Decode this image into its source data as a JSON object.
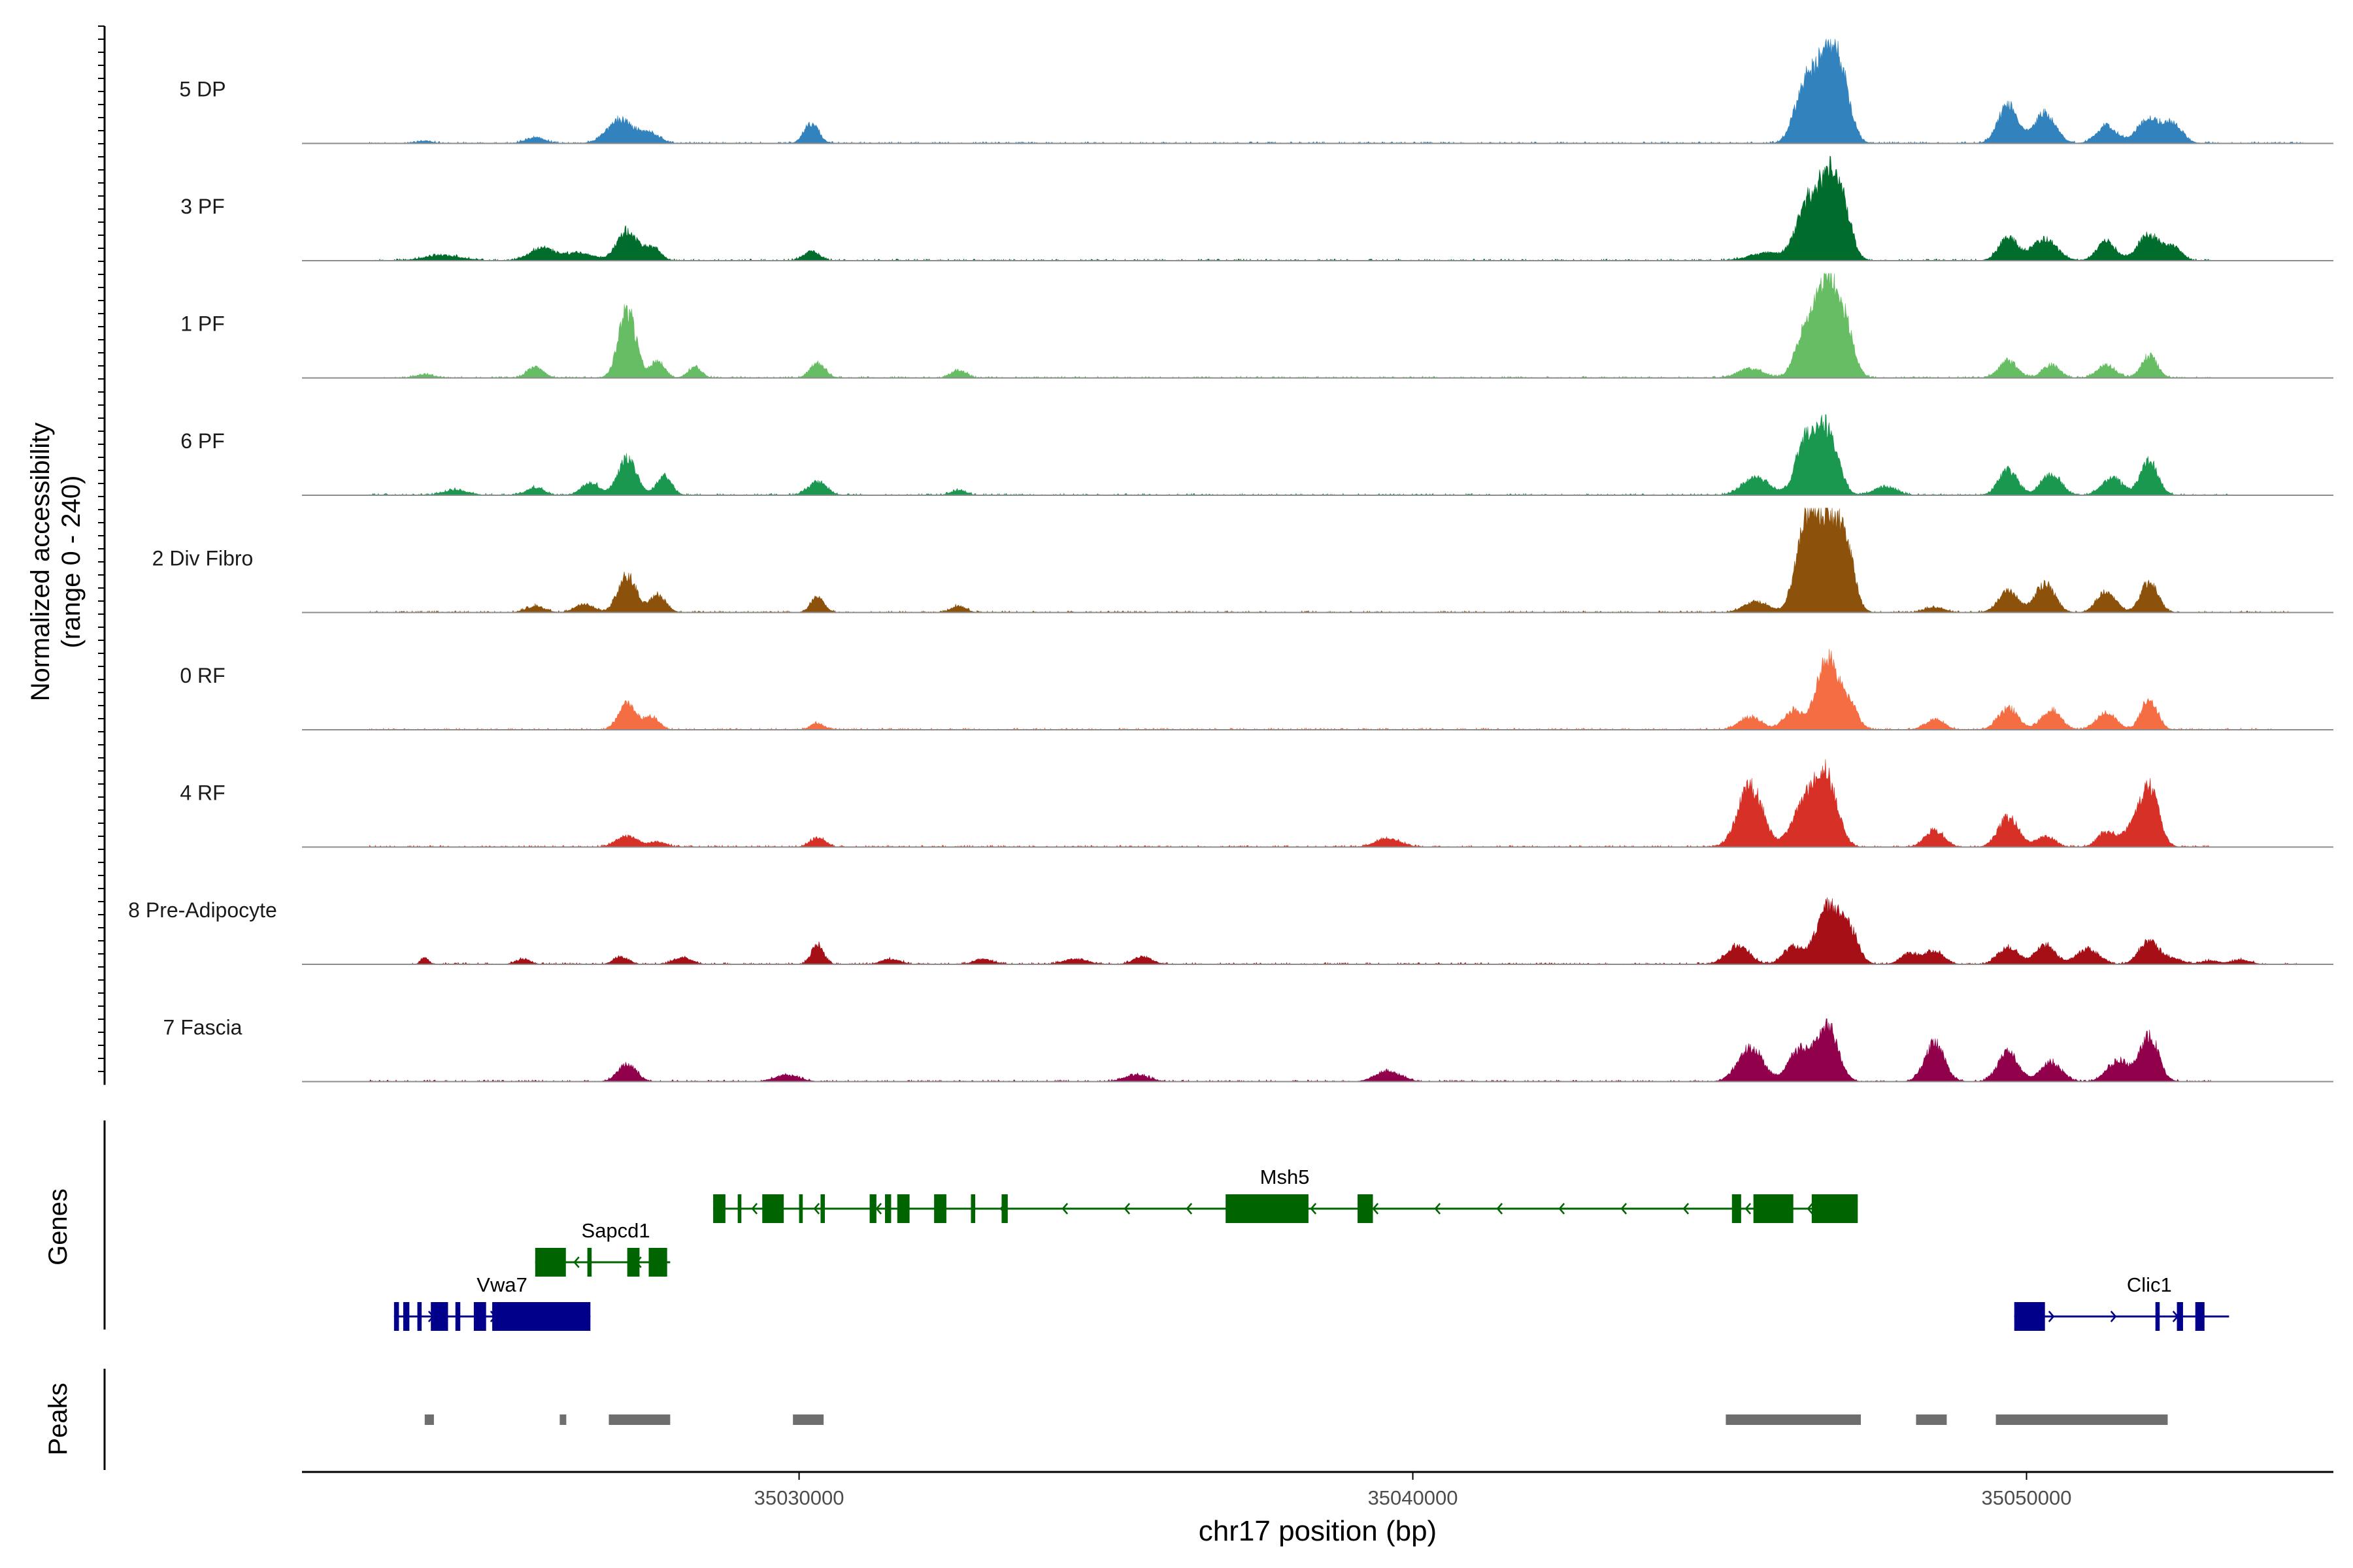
{
  "chart_data": {
    "type": "area",
    "title": "",
    "xlabel": "chr17 position (bp)",
    "ylabel": "Normalized accessibility",
    "ylabel_range": "(range 0 - 240)",
    "xlim": [
      35021900,
      35055000
    ],
    "ylim": [
      0,
      240
    ],
    "x_ticks": [
      35030000,
      35040000,
      35050000
    ],
    "x_tick_labels": [
      "35030000",
      "35040000",
      "35050000"
    ],
    "tracks": [
      {
        "name": "5 DP",
        "color": "#3182bd",
        "peaks": [
          [
            35023900,
            6,
            120
          ],
          [
            35025700,
            14,
            150
          ],
          [
            35027100,
            55,
            220
          ],
          [
            35027600,
            22,
            140
          ],
          [
            35030200,
            45,
            120
          ],
          [
            35046400,
            140,
            170
          ],
          [
            35046750,
            190,
            160
          ],
          [
            35047000,
            120,
            150
          ],
          [
            35049700,
            90,
            160
          ],
          [
            35050300,
            70,
            170
          ],
          [
            35051300,
            40,
            160
          ],
          [
            35052000,
            55,
            200
          ],
          [
            35052400,
            40,
            150
          ]
        ],
        "noise": [
          35023000,
          35054500
        ]
      },
      {
        "name": "3 PF",
        "color": "#006d2c",
        "peaks": [
          [
            35024200,
            12,
            300
          ],
          [
            35025800,
            28,
            200
          ],
          [
            35026400,
            18,
            250
          ],
          [
            35027200,
            70,
            160
          ],
          [
            35027600,
            30,
            130
          ],
          [
            35030200,
            22,
            130
          ],
          [
            35045800,
            18,
            300
          ],
          [
            35046400,
            120,
            160
          ],
          [
            35046750,
            180,
            160
          ],
          [
            35047000,
            110,
            150
          ],
          [
            35049700,
            55,
            150
          ],
          [
            35050300,
            50,
            200
          ],
          [
            35051300,
            45,
            150
          ],
          [
            35052000,
            60,
            180
          ],
          [
            35052400,
            30,
            130
          ]
        ],
        "noise": [
          35023000,
          35053000
        ]
      },
      {
        "name": "1 PF",
        "color": "#66bd63",
        "peaks": [
          [
            35023900,
            8,
            150
          ],
          [
            35025700,
            25,
            130
          ],
          [
            35027200,
            160,
            140
          ],
          [
            35027700,
            40,
            110
          ],
          [
            35028300,
            25,
            110
          ],
          [
            35030300,
            35,
            120
          ],
          [
            35032600,
            18,
            120
          ],
          [
            35045500,
            22,
            200
          ],
          [
            35046400,
            110,
            160
          ],
          [
            35046750,
            230,
            160
          ],
          [
            35047050,
            110,
            140
          ],
          [
            35049700,
            40,
            150
          ],
          [
            35050400,
            30,
            140
          ],
          [
            35051300,
            30,
            150
          ],
          [
            35052000,
            50,
            130
          ]
        ],
        "noise": [
          35023000,
          35053000
        ]
      },
      {
        "name": "6 PF",
        "color": "#1a9850",
        "peaks": [
          [
            35024400,
            12,
            200
          ],
          [
            35025700,
            18,
            140
          ],
          [
            35026600,
            30,
            140
          ],
          [
            35027200,
            85,
            150
          ],
          [
            35027800,
            45,
            120
          ],
          [
            35030300,
            30,
            150
          ],
          [
            35032600,
            12,
            120
          ],
          [
            35045600,
            40,
            220
          ],
          [
            35046400,
            125,
            160
          ],
          [
            35046750,
            150,
            170
          ],
          [
            35047700,
            20,
            180
          ],
          [
            35049700,
            60,
            150
          ],
          [
            35050400,
            50,
            160
          ],
          [
            35051400,
            40,
            170
          ],
          [
            35052000,
            80,
            140
          ]
        ],
        "noise": [
          35023000,
          35053300
        ]
      },
      {
        "name": "2 Div Fibro",
        "color": "#8c510a",
        "peaks": [
          [
            35025700,
            15,
            150
          ],
          [
            35026500,
            20,
            150
          ],
          [
            35027200,
            85,
            150
          ],
          [
            35027700,
            40,
            130
          ],
          [
            35030300,
            35,
            110
          ],
          [
            35032600,
            15,
            120
          ],
          [
            35045600,
            25,
            200
          ],
          [
            35046400,
            195,
            160
          ],
          [
            35046750,
            200,
            170
          ],
          [
            35047050,
            150,
            140
          ],
          [
            35048500,
            12,
            160
          ],
          [
            35049700,
            50,
            160
          ],
          [
            35050300,
            65,
            160
          ],
          [
            35051300,
            50,
            150
          ],
          [
            35052000,
            70,
            140
          ]
        ],
        "noise": [
          35023000,
          35054300
        ]
      },
      {
        "name": "0 RF",
        "color": "#f46d43",
        "peaks": [
          [
            35027200,
            60,
            140
          ],
          [
            35027600,
            30,
            120
          ],
          [
            35030300,
            15,
            110
          ],
          [
            35045500,
            30,
            180
          ],
          [
            35046200,
            45,
            150
          ],
          [
            35046750,
            170,
            170
          ],
          [
            35047100,
            60,
            140
          ],
          [
            35048500,
            25,
            150
          ],
          [
            35049700,
            50,
            160
          ],
          [
            35050400,
            45,
            160
          ],
          [
            35051300,
            40,
            160
          ],
          [
            35052000,
            70,
            130
          ]
        ],
        "noise": [
          35023000,
          35054000
        ]
      },
      {
        "name": "4 RF",
        "color": "#d73027",
        "peaks": [
          [
            35027200,
            25,
            170
          ],
          [
            35027700,
            12,
            130
          ],
          [
            35030300,
            22,
            120
          ],
          [
            35039600,
            20,
            200
          ],
          [
            35045500,
            140,
            200
          ],
          [
            35046400,
            110,
            200
          ],
          [
            35046750,
            150,
            170
          ],
          [
            35048500,
            40,
            150
          ],
          [
            35049700,
            70,
            160
          ],
          [
            35050300,
            25,
            150
          ],
          [
            35051300,
            35,
            140
          ],
          [
            35051700,
            40,
            140
          ],
          [
            35052000,
            145,
            150
          ]
        ],
        "noise": [
          35023000,
          35053000
        ]
      },
      {
        "name": "8 Pre-Adipocyte",
        "color": "#a50f15",
        "peaks": [
          [
            35023900,
            15,
            60
          ],
          [
            35025500,
            12,
            120
          ],
          [
            35027100,
            18,
            120
          ],
          [
            35028100,
            15,
            150
          ],
          [
            35030300,
            45,
            100
          ],
          [
            35031500,
            12,
            150
          ],
          [
            35033000,
            12,
            150
          ],
          [
            35034500,
            12,
            200
          ],
          [
            35035600,
            18,
            150
          ],
          [
            35045300,
            45,
            180
          ],
          [
            35046200,
            40,
            160
          ],
          [
            35046750,
            130,
            180
          ],
          [
            35047100,
            80,
            150
          ],
          [
            35048100,
            25,
            150
          ],
          [
            35048500,
            30,
            150
          ],
          [
            35049700,
            40,
            160
          ],
          [
            35050300,
            45,
            160
          ],
          [
            35051000,
            35,
            180
          ],
          [
            35052000,
            55,
            160
          ],
          [
            35052400,
            12,
            150
          ],
          [
            35053000,
            8,
            150
          ],
          [
            35053500,
            10,
            150
          ]
        ],
        "noise": [
          35023700,
          35054400
        ]
      },
      {
        "name": "7 Fascia",
        "color": "#91004b",
        "peaks": [
          [
            35027200,
            40,
            150
          ],
          [
            35029800,
            15,
            200
          ],
          [
            35035500,
            15,
            200
          ],
          [
            35039600,
            25,
            200
          ],
          [
            35045500,
            80,
            200
          ],
          [
            35046300,
            70,
            180
          ],
          [
            35046750,
            130,
            170
          ],
          [
            35048500,
            90,
            160
          ],
          [
            35049700,
            70,
            160
          ],
          [
            35050400,
            45,
            170
          ],
          [
            35051500,
            50,
            180
          ],
          [
            35052000,
            105,
            150
          ]
        ],
        "noise": [
          35023000,
          35053000
        ]
      }
    ],
    "genes": [
      {
        "name": "Vwa7",
        "strand": "+",
        "color": "#00008b",
        "row": 2,
        "start": 35023400,
        "end": 35026600,
        "exons": [
          [
            35023400,
            35023480
          ],
          [
            35023550,
            35023650
          ],
          [
            35023780,
            35023850
          ],
          [
            35024000,
            35024280
          ],
          [
            35024400,
            35024480
          ],
          [
            35024700,
            35024900
          ],
          [
            35025000,
            35026600
          ]
        ]
      },
      {
        "name": "Sapcd1",
        "strand": "-",
        "color": "#006400",
        "row": 1,
        "start": 35025700,
        "end": 35027900,
        "exons": [
          [
            35025700,
            35026200
          ],
          [
            35026550,
            35026620
          ],
          [
            35027200,
            35027400
          ],
          [
            35027550,
            35027850
          ]
        ]
      },
      {
        "name": "Msh5",
        "strand": "-",
        "color": "#006400",
        "row": 0,
        "start": 35028600,
        "end": 35046800,
        "exons": [
          [
            35028600,
            35028800
          ],
          [
            35029000,
            35029060
          ],
          [
            35029400,
            35029750
          ],
          [
            35030000,
            35030060
          ],
          [
            35030350,
            35030420
          ],
          [
            35031150,
            35031260
          ],
          [
            35031400,
            35031500
          ],
          [
            35031600,
            35031800
          ],
          [
            35032200,
            35032400
          ],
          [
            35032800,
            35032870
          ],
          [
            35033300,
            35033400
          ],
          [
            35036950,
            35038300
          ],
          [
            35039100,
            35039350
          ],
          [
            35045200,
            35045350
          ],
          [
            35045550,
            35046200
          ],
          [
            35046500,
            35047250
          ]
        ]
      },
      {
        "name": "Clic1",
        "strand": "+",
        "color": "#00008b",
        "row": 2,
        "start": 35049800,
        "end": 35053300,
        "exons": [
          [
            35049800,
            35050300
          ],
          [
            35052100,
            35052170
          ],
          [
            35052450,
            35052550
          ],
          [
            35052750,
            35052900
          ]
        ]
      }
    ],
    "peaks_track": [
      [
        35023900,
        35024050
      ],
      [
        35026100,
        35026200
      ],
      [
        35026900,
        35027900
      ],
      [
        35029900,
        35030400
      ],
      [
        35045100,
        35047300
      ],
      [
        35048200,
        35048700
      ],
      [
        35049500,
        35052300
      ]
    ],
    "panel_labels": {
      "genes": "Genes",
      "peaks": "Peaks"
    }
  }
}
